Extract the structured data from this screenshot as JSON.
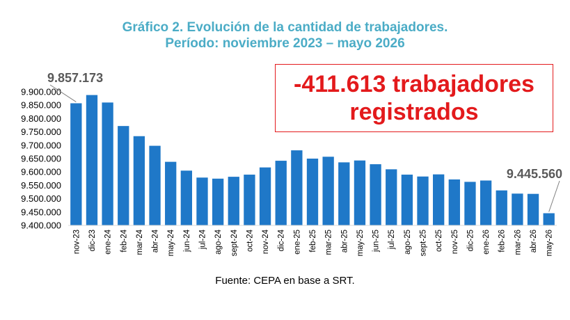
{
  "title_line1": "Gráfico 2. Evolución de la cantidad de trabajadores.",
  "title_line2": "Período: noviembre 2023 – mayo 2026",
  "source": "Fuente: CEPA en base a SRT.",
  "callout": {
    "line1": "-411.613 trabajadores",
    "line2": "registrados",
    "color": "#e31a1c"
  },
  "annotations": {
    "first": "9.857.173",
    "last": "9.445.560"
  },
  "colors": {
    "bar": "#1f78c8",
    "title": "#4bacc6"
  },
  "chart_data": {
    "type": "bar",
    "title": "Gráfico 2. Evolución de la cantidad de trabajadores.",
    "subtitle": "Período: noviembre 2023 – mayo 2026",
    "categories": [
      "nov-23",
      "dic-23",
      "ene-24",
      "feb-24",
      "mar-24",
      "abr-24",
      "may-24",
      "jun-24",
      "jul-24",
      "ago-24",
      "sept-24",
      "oct-24",
      "nov-24",
      "dic-24",
      "ene-25",
      "feb-25",
      "mar-25",
      "abr-25",
      "may-25",
      "jun-25",
      "jul-25",
      "ago-25",
      "sept-25",
      "oct-25",
      "nov-25",
      "dic-25",
      "ene-26",
      "feb-26",
      "mar-26",
      "abr-26",
      "may-26"
    ],
    "values": [
      9857173,
      9888000,
      9860000,
      9772000,
      9734000,
      9698000,
      9638000,
      9605000,
      9579000,
      9575000,
      9582000,
      9590000,
      9617000,
      9642000,
      9681000,
      9650000,
      9657000,
      9636000,
      9643000,
      9629000,
      9610000,
      9590000,
      9583000,
      9591000,
      9572000,
      9563000,
      9568000,
      9531000,
      9519000,
      9518000,
      9445560
    ],
    "ylim": [
      9400000,
      9900000
    ],
    "yticks": [
      "9.400.000",
      "9.450.000",
      "9.500.000",
      "9.550.000",
      "9.600.000",
      "9.650.000",
      "9.700.000",
      "9.750.000",
      "9.800.000",
      "9.850.000",
      "9.900.000"
    ],
    "xlabel": "",
    "ylabel": "",
    "grid": false,
    "legend": "none"
  }
}
